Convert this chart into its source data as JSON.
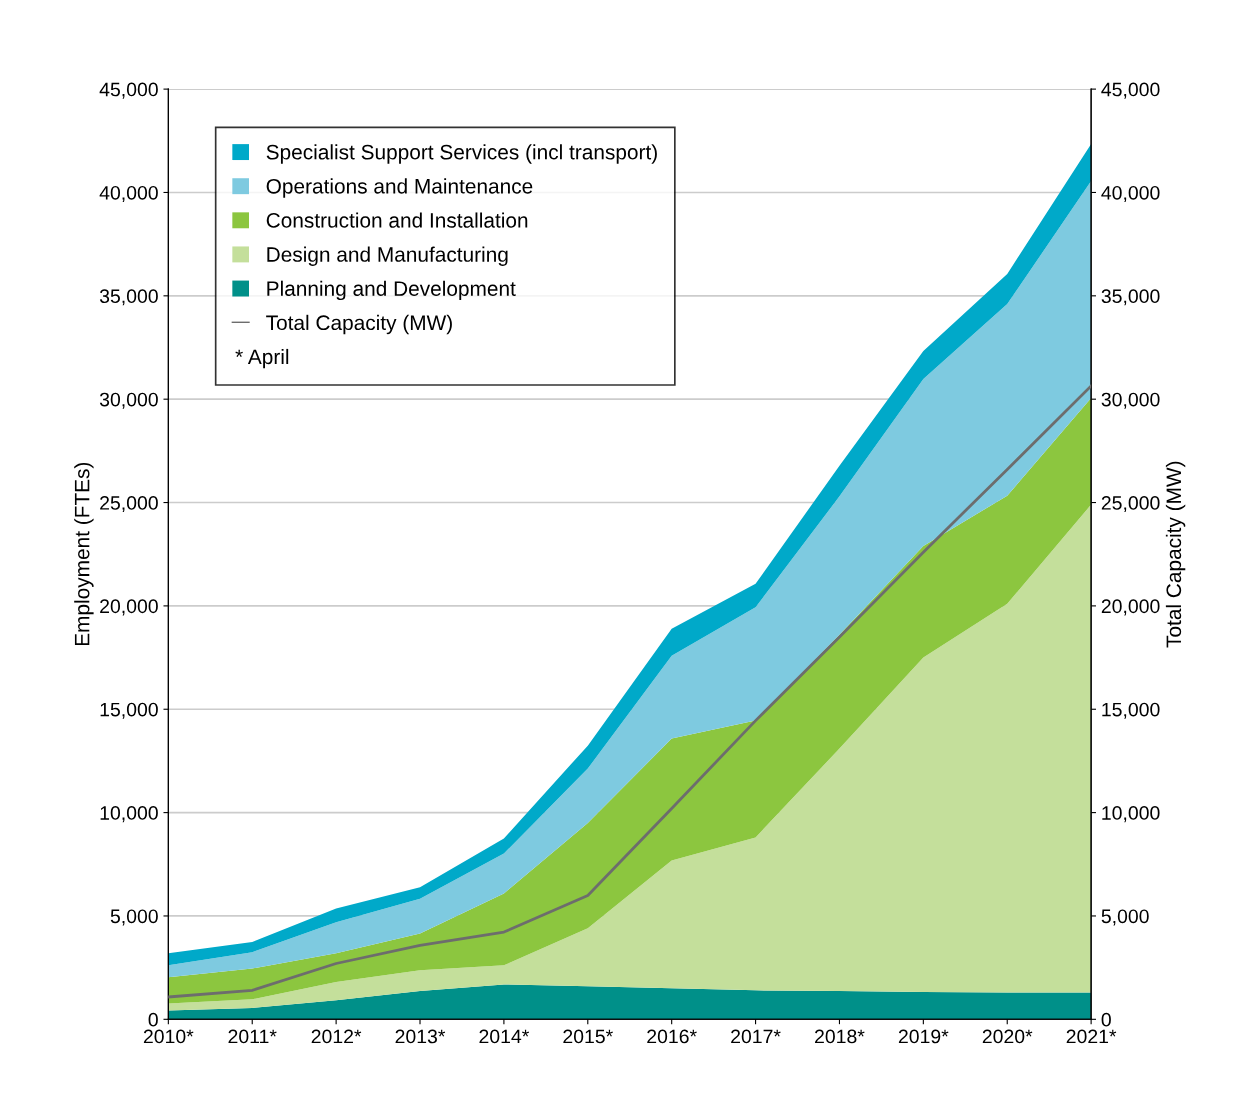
{
  "chart_data": {
    "type": "area",
    "stacked": true,
    "ylabel": "Employment (FTEs)",
    "y2label": "Total Capacity (MW)",
    "categories": [
      "2010*",
      "2011*",
      "2012*",
      "2013*",
      "2014*",
      "2015*",
      "2016*",
      "2017*",
      "2018*",
      "2019*",
      "2020*",
      "2021*"
    ],
    "series": [
      {
        "name": "Planning and Development",
        "color": "#009089",
        "values": [
          430,
          550,
          920,
          1370,
          1690,
          1600,
          1500,
          1400,
          1370,
          1320,
          1300,
          1300
        ]
      },
      {
        "name": "Design and Manufacturing",
        "color": "#c4df9b",
        "values": [
          340,
          420,
          880,
          1000,
          920,
          2800,
          6180,
          7400,
          11730,
          16180,
          18800,
          23600
        ]
      },
      {
        "name": "Construction and Installation",
        "color": "#8cc63f",
        "values": [
          1270,
          1490,
          1390,
          1780,
          3480,
          5100,
          5900,
          5650,
          5500,
          5400,
          5230,
          5160
        ]
      },
      {
        "name": "Operations and Maintenance",
        "color": "#7ecae0",
        "values": [
          570,
          790,
          1510,
          1680,
          1930,
          2630,
          4010,
          5480,
          6700,
          8080,
          9270,
          10490
        ]
      },
      {
        "name": "Specialist Support Services (incl transport)",
        "color": "#00a9c9",
        "values": [
          580,
          490,
          660,
          560,
          730,
          1110,
          1310,
          1140,
          1480,
          1350,
          1460,
          1790
        ]
      },
      {
        "name": "Total Capacity (MW)",
        "type": "line",
        "axis": "y2",
        "color": "#6d6d6d",
        "values": [
          1080,
          1400,
          2700,
          3580,
          4220,
          5990,
          10200,
          14450,
          18500,
          22600,
          26600,
          30640
        ]
      }
    ],
    "ylim": [
      0,
      45000
    ],
    "yticks": [
      {
        "value": 0,
        "label": "0"
      },
      {
        "value": 5000,
        "label": "5,000"
      },
      {
        "value": 10000,
        "label": "10,000"
      },
      {
        "value": 15000,
        "label": "15,000"
      },
      {
        "value": 20000,
        "label": "20,000"
      },
      {
        "value": 25000,
        "label": "25,000"
      },
      {
        "value": 30000,
        "label": "30,000"
      },
      {
        "value": 35000,
        "label": "35,000"
      },
      {
        "value": 40000,
        "label": "40,000"
      },
      {
        "value": 45000,
        "label": "45,000"
      }
    ],
    "y2lim": [
      0,
      45000
    ],
    "y2ticks": [
      {
        "value": 0,
        "label": "0"
      },
      {
        "value": 5000,
        "label": "5,000"
      },
      {
        "value": 10000,
        "label": "10,000"
      },
      {
        "value": 15000,
        "label": "15,000"
      },
      {
        "value": 20000,
        "label": "20,000"
      },
      {
        "value": 25000,
        "label": "25,000"
      },
      {
        "value": 30000,
        "label": "30,000"
      },
      {
        "value": 35000,
        "label": "35,000"
      },
      {
        "value": 40000,
        "label": "40,000"
      },
      {
        "value": 45000,
        "label": "45,000"
      }
    ],
    "grid": "y",
    "legend": "top left",
    "line_style": "solid",
    "annotations": [
      "* April"
    ]
  }
}
